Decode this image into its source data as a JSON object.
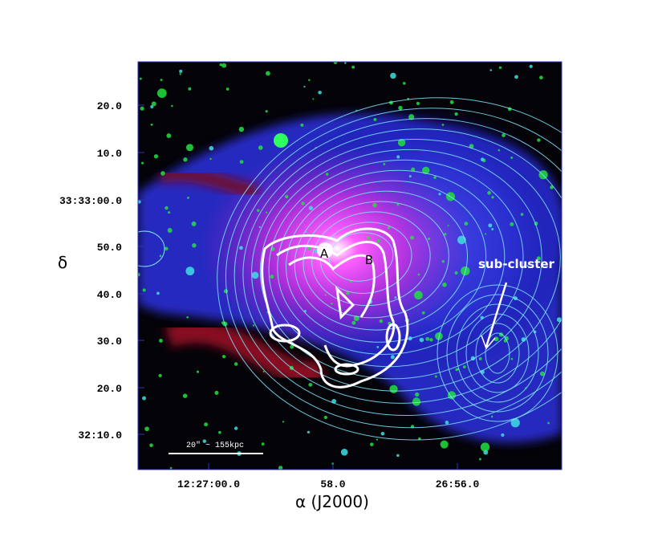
{
  "figure": {
    "y_axis_label": "δ",
    "x_axis_label": "α (J2000)",
    "yticks": [
      "20.0",
      "10.0",
      "33:33:00.0",
      "50.0",
      "40.0",
      "30.0",
      "20.0",
      "32:10.0"
    ],
    "xticks": [
      "12:27:00.0",
      "58.0",
      "26:56.0"
    ],
    "annotations": {
      "a": "A",
      "b": "B",
      "sub_cluster": "sub-cluster",
      "scale_bar": "20\" ~ 155kpc"
    }
  }
}
